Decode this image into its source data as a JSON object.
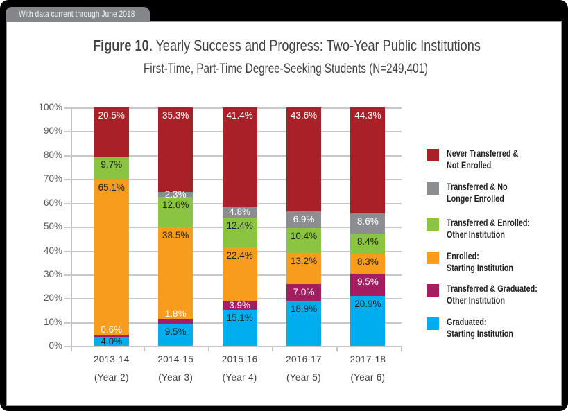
{
  "banner": {
    "text": "With data current through June 2018"
  },
  "title": {
    "figure_label": "Figure 10.",
    "text": "Yearly Success and Progress: Two-Year Public Institutions",
    "subtitle": "First-Time, Part-Time Degree-Seeking Students (N=249,401)"
  },
  "chart_data": {
    "type": "stacked-bar",
    "categories": [
      [
        "2013-14",
        "(Year 2)"
      ],
      [
        "2014-15",
        "(Year 3)"
      ],
      [
        "2015-16",
        "(Year 4)"
      ],
      [
        "2016-17",
        "(Year 5)"
      ],
      [
        "2017-18",
        "(Year 6)"
      ]
    ],
    "y_ticks": [
      "0%",
      "10%",
      "20%",
      "30%",
      "40%",
      "50%",
      "60%",
      "70%",
      "80%",
      "90%",
      "100%"
    ],
    "ylim": [
      0,
      100
    ],
    "grid": true,
    "legend_position": "right",
    "series": [
      {
        "name": "Graduated: Starting Institution",
        "legend": [
          "Graduated:",
          "Starting Institution"
        ],
        "color": "#00AEEF",
        "label_color": "#1F2023",
        "values": [
          4.0,
          9.5,
          15.1,
          18.9,
          20.9
        ]
      },
      {
        "name": "Transferred & Graduated: Other Institution",
        "legend": [
          "Transferred & Graduated:",
          "Other Institution"
        ],
        "color": "#A31D60",
        "label_color": "#FFFFFF",
        "values": [
          0.6,
          1.8,
          3.9,
          7.0,
          9.5
        ]
      },
      {
        "name": "Enrolled: Starting Institution",
        "legend": [
          "Enrolled:",
          "Starting Institution"
        ],
        "color": "#F89C1D",
        "label_color": "#1F2023",
        "values": [
          65.1,
          38.5,
          22.4,
          13.2,
          8.3
        ]
      },
      {
        "name": "Transferred & Enrolled: Other Institution",
        "legend": [
          "Transferred & Enrolled:",
          "Other Institution"
        ],
        "color": "#8AC440",
        "label_color": "#1F2023",
        "values": [
          9.7,
          12.6,
          12.4,
          10.4,
          8.4
        ]
      },
      {
        "name": "Transferred & No Longer Enrolled",
        "legend": [
          "Transferred & No",
          "Longer Enrolled"
        ],
        "color": "#8B8D90",
        "label_color": "#FFFFFF",
        "values": [
          null,
          2.3,
          4.8,
          6.9,
          8.6
        ]
      },
      {
        "name": "Never Transferred & Not Enrolled",
        "legend": [
          "Never Transferred &",
          "Not Enrolled"
        ],
        "color": "#A82128",
        "label_color": "#FFFFFF",
        "values": [
          20.5,
          35.3,
          41.4,
          43.6,
          44.3
        ]
      }
    ],
    "legend_order_top_to_bottom": [
      5,
      4,
      3,
      2,
      1,
      0
    ]
  }
}
